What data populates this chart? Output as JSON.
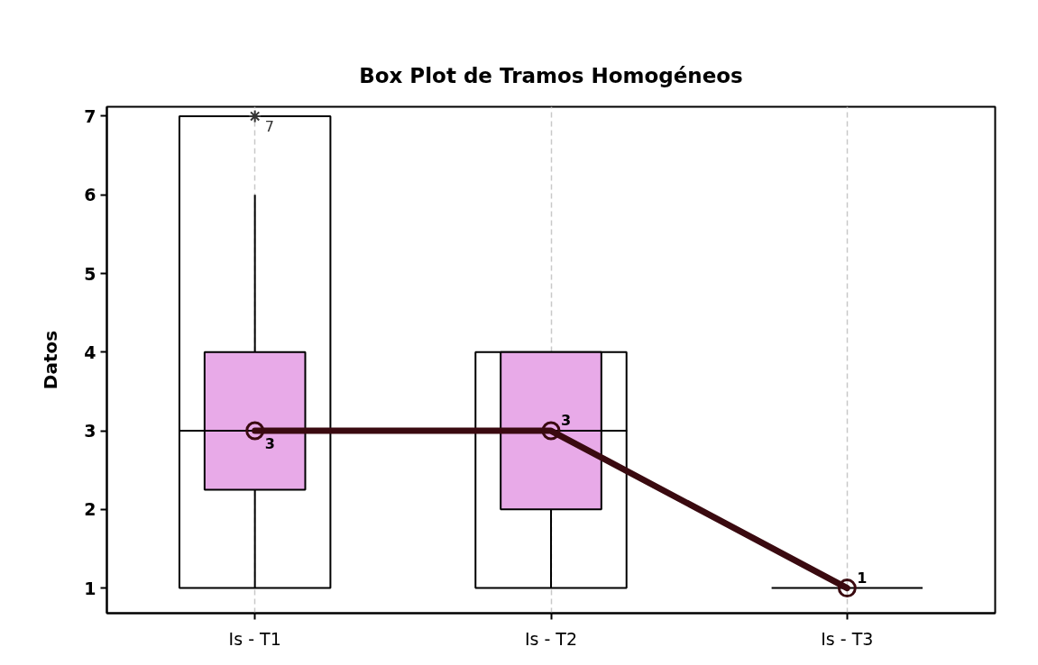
{
  "chart_data": {
    "type": "box",
    "title": "Box Plot de Tramos Homogéneos",
    "ylabel": "Datos",
    "categories": [
      "Is - T1",
      "Is - T2",
      "Is - T3"
    ],
    "ylim": [
      0.68,
      7.12
    ],
    "yticks": [
      1,
      2,
      3,
      4,
      5,
      6,
      7
    ],
    "grid": "x",
    "series": [
      {
        "type": "bar",
        "color": "#000000",
        "base": [
          1,
          1,
          1
        ],
        "values": [
          2,
          2,
          0
        ]
      },
      {
        "type": "bar",
        "color": "#000000",
        "base": [
          3,
          3,
          null
        ],
        "values": [
          4,
          1,
          null
        ]
      },
      {
        "color": "#e8aae8",
        "boxes": [
          {
            "low": 1,
            "q1": 2.25,
            "median": 3,
            "q3": 4,
            "high": 6,
            "outliers": [
              7
            ]
          },
          {
            "low": 1,
            "q1": 2,
            "median": 3,
            "q3": 4,
            "high": 4
          },
          null
        ]
      },
      {
        "type": "line",
        "color": "#3a0a10",
        "values": [
          3,
          3,
          1
        ],
        "marker": "circle",
        "value_labels": [
          "3",
          "3",
          "1"
        ]
      }
    ],
    "annotations": [
      {
        "text": "7",
        "x": "Is - T1",
        "y": 7
      }
    ]
  }
}
